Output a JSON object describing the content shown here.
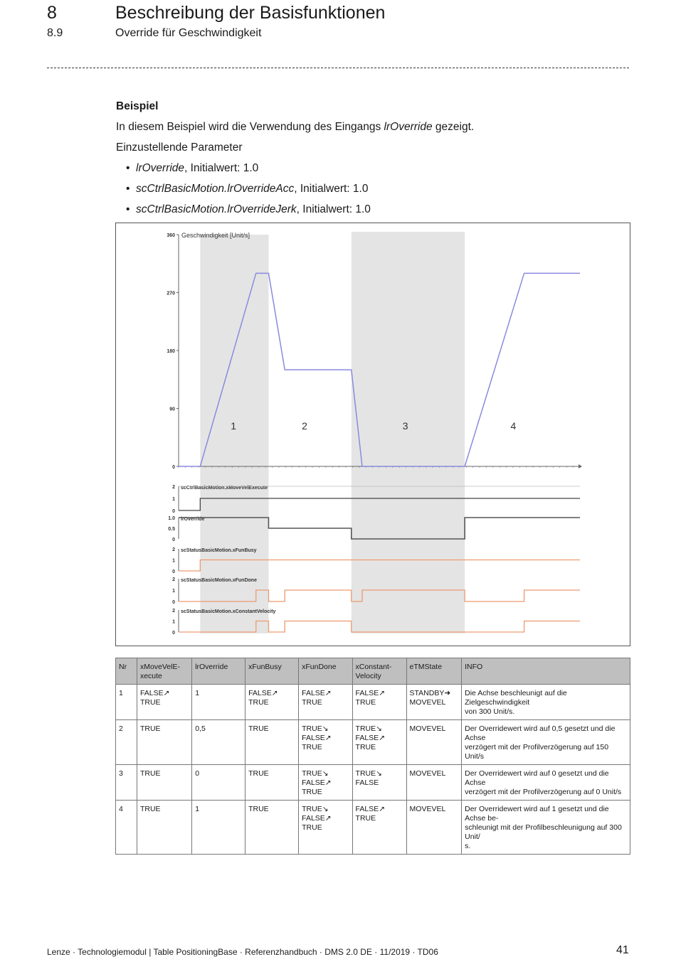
{
  "header": {
    "chapter_number": "8",
    "chapter_title": "Beschreibung der Basisfunktionen",
    "section_number": "8.9",
    "section_title": "Override für Geschwindigkeit"
  },
  "body": {
    "heading": "Beispiel",
    "intro_before": "In diesem Beispiel wird die Verwendung des Eingangs ",
    "intro_var": "lrOverride",
    "intro_after": " gezeigt.",
    "params_label": "Einzustellende Parameter",
    "params": [
      {
        "name": "lrOverride",
        "suffix": ", Initialwert: 1.0"
      },
      {
        "name": "scCtrlBasicMotion.lrOverrideAcc",
        "suffix": ", Initialwert: 1.0"
      },
      {
        "name": "scCtrlBasicMotion.lrOverrideJerk",
        "suffix": ", Initialwert: 1.0"
      }
    ]
  },
  "chart_data": {
    "type": "line",
    "title": "Geschwindigkeit [Unit/s]",
    "ylim": [
      0,
      360
    ],
    "y_ticks": [
      "0",
      "90",
      "180",
      "270",
      "360"
    ],
    "phases": [
      "1",
      "2",
      "3",
      "4"
    ],
    "colors": {
      "velocity": "#8a8ae0",
      "digital": "#444444",
      "override": "#555555",
      "status": "#ec9a70",
      "shade": "#e4e4e4"
    },
    "velocity": {
      "x": [
        0,
        1.2,
        4.3,
        5.0,
        5.9,
        9.6,
        10.2,
        15.9,
        19.2,
        22.3
      ],
      "y": [
        0,
        0,
        300,
        300,
        150,
        150,
        0,
        0,
        300,
        300
      ]
    },
    "signals": [
      {
        "name": "scCtrlBasicMotion.xMoveVelExecute",
        "ticks": [
          "2",
          "1",
          "0"
        ],
        "x": [
          0,
          1.2,
          1.2,
          22.3
        ],
        "y": [
          0,
          0,
          1,
          1
        ]
      },
      {
        "name": "lrOverride",
        "ticks": [
          "1.0",
          "0.5",
          "0"
        ],
        "x": [
          0,
          5.0,
          5.0,
          9.6,
          9.6,
          15.9,
          15.9,
          22.3
        ],
        "y": [
          1,
          1,
          0.5,
          0.5,
          0,
          0,
          1,
          1
        ]
      },
      {
        "name": "scStatusBasicMotion.xFunBusy",
        "ticks": [
          "2",
          "1",
          "0"
        ],
        "x": [
          0,
          1.2,
          1.2,
          22.3
        ],
        "y": [
          0,
          0,
          1,
          1
        ]
      },
      {
        "name": "scStatusBasicMotion.xFunDone",
        "ticks": [
          "2",
          "1",
          "0"
        ],
        "x": [
          0,
          4.3,
          4.3,
          5.0,
          5.0,
          5.9,
          5.9,
          9.6,
          9.6,
          10.2,
          10.2,
          15.9,
          15.9,
          19.2,
          19.2,
          22.3
        ],
        "y": [
          0,
          0,
          1,
          1,
          0,
          0,
          1,
          1,
          0,
          0,
          1,
          1,
          0,
          0,
          1,
          1
        ]
      },
      {
        "name": "scStatusBasicMotion.xConstantVelocity",
        "ticks": [
          "2",
          "1",
          "0"
        ],
        "x": [
          0,
          4.3,
          4.3,
          5.0,
          5.0,
          5.9,
          5.9,
          9.6,
          9.6,
          19.2,
          19.2,
          22.3
        ],
        "y": [
          0,
          0,
          1,
          1,
          0,
          0,
          1,
          1,
          0,
          0,
          1,
          1
        ]
      }
    ]
  },
  "table": {
    "headers": [
      "Nr",
      "xMoveVelE-\nxecute",
      "lrOverride",
      "xFunBusy",
      "xFunDone",
      "xConstant-\nVelocity",
      "eTMState",
      "INFO"
    ],
    "rows": [
      [
        "1",
        "FALSE↗\nTRUE",
        "1",
        "FALSE↗\nTRUE",
        "FALSE↗\nTRUE",
        "FALSE↗\nTRUE",
        "STANDBY➜\nMOVEVEL",
        "Die Achse beschleunigt auf die Zielgeschwindigkeit\nvon 300 Unit/s."
      ],
      [
        "2",
        "TRUE",
        "0,5",
        "TRUE",
        "TRUE↘\nFALSE↗\nTRUE",
        "TRUE↘\nFALSE↗\nTRUE",
        "MOVEVEL",
        "Der Overridewert wird auf 0,5 gesetzt und die Achse\nverzögert mit der Profilverzögerung auf 150 Unit/s"
      ],
      [
        "3",
        "TRUE",
        "0",
        "TRUE",
        "TRUE↘\nFALSE↗\nTRUE",
        "TRUE↘\nFALSE",
        "MOVEVEL",
        "Der Overridewert wird auf 0 gesetzt und die Achse\nverzögert mit der Profilverzögerung auf 0 Unit/s"
      ],
      [
        "4",
        "TRUE",
        "1",
        "TRUE",
        "TRUE↘\nFALSE↗\nTRUE",
        "FALSE↗\nTRUE",
        "MOVEVEL",
        "Der Overridewert wird auf 1 gesetzt und die Achse be-\nschleunigt mit der Profilbeschleunigung auf 300 Unit/\ns."
      ]
    ]
  },
  "footer": {
    "text": "Lenze · Technologiemodul | Table PositioningBase · Referenzhandbuch · DMS 2.0 DE · 11/2019 · TD06",
    "page": "41"
  }
}
